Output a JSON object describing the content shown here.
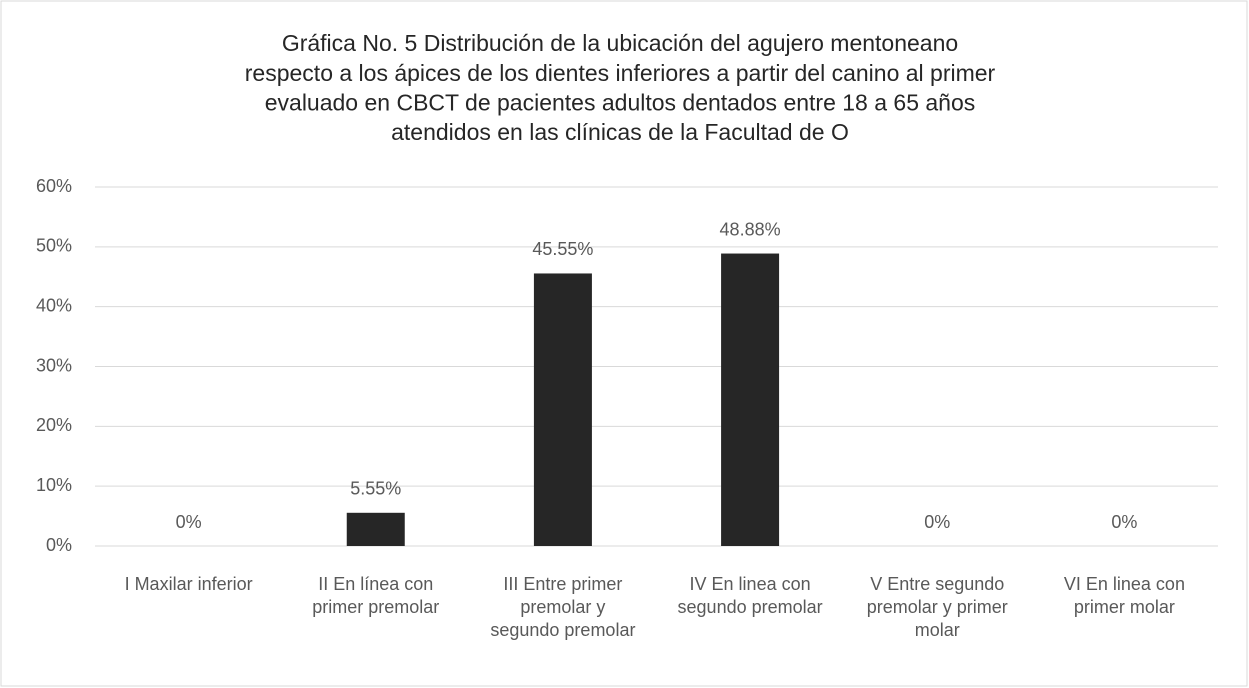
{
  "chart_data": {
    "type": "bar",
    "title": [
      "Gráfica No. 5 Distribución de la ubicación del agujero mentoneano",
      "respecto a los ápices de los dientes inferiores a partir del canino al primer",
      "evaluado en CBCT de pacientes adultos dentados entre 18 a 65 años",
      "atendidos en las clínicas de la Facultad de O"
    ],
    "categories": [
      [
        "I Maxilar inferior"
      ],
      [
        "II En línea con",
        "primer premolar"
      ],
      [
        "III Entre primer",
        "premolar y",
        "segundo premolar"
      ],
      [
        "IV En linea con",
        "segundo premolar"
      ],
      [
        "V Entre segundo",
        "premolar y primer",
        "molar"
      ],
      [
        "VI En linea con",
        "primer molar"
      ]
    ],
    "values": [
      0,
      5.55,
      45.55,
      48.88,
      0,
      0
    ],
    "value_labels": [
      "0%",
      "5.55%",
      "45.55%",
      "48.88%",
      "0%",
      "0%"
    ],
    "color": "#262626",
    "ylim": [
      0,
      60
    ],
    "yticks": [
      {
        "value": 0,
        "label": "0%"
      },
      {
        "value": 10,
        "label": "10%"
      },
      {
        "value": 20,
        "label": "20%"
      },
      {
        "value": 30,
        "label": "30%"
      },
      {
        "value": 40,
        "label": "40%"
      },
      {
        "value": 50,
        "label": "50%"
      },
      {
        "value": 60,
        "label": "60%"
      }
    ],
    "grid": true
  }
}
